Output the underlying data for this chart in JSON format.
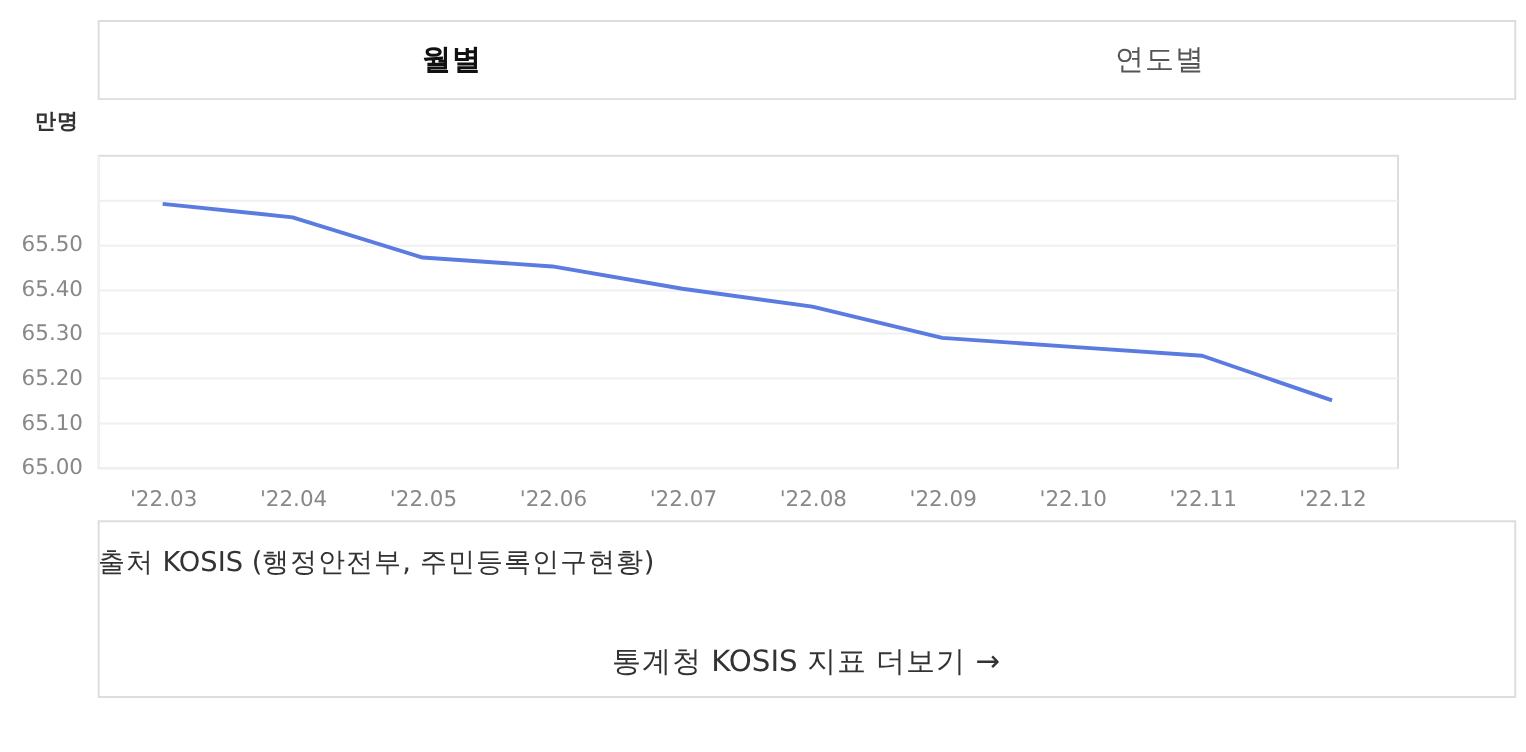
{
  "chart_data": {
    "type": "line",
    "ylabel": "만명",
    "categories": [
      "'22.03",
      "'22.04",
      "'22.05",
      "'22.06",
      "'22.07",
      "'22.08",
      "'22.09",
      "'22.10",
      "'22.11",
      "'22.12"
    ],
    "series": [
      {
        "color": "#5a7be0",
        "values": [
          65.59,
          65.56,
          65.47,
          65.45,
          65.4,
          65.36,
          65.29,
          65.27,
          65.25,
          65.15
        ]
      }
    ],
    "ylim": [
      65.0,
      65.7
    ],
    "yticks": [
      {
        "value": 65.0,
        "label": "65.00"
      },
      {
        "value": 65.1,
        "label": "65.10"
      },
      {
        "value": 65.2,
        "label": "65.20"
      },
      {
        "value": 65.3,
        "label": "65.30"
      },
      {
        "value": 65.4,
        "label": "65.40"
      },
      {
        "value": 65.5,
        "label": "65.50"
      },
      {
        "value": 65.6,
        "label": null
      }
    ],
    "grid": "y",
    "marker": "none",
    "line_style": "solid",
    "annotations": [
      "월별",
      "연도별",
      "출처 KOSIS (행정안전부, 주민등록인구현황)",
      "통계청 KOSIS 지표 더보기 →"
    ]
  }
}
